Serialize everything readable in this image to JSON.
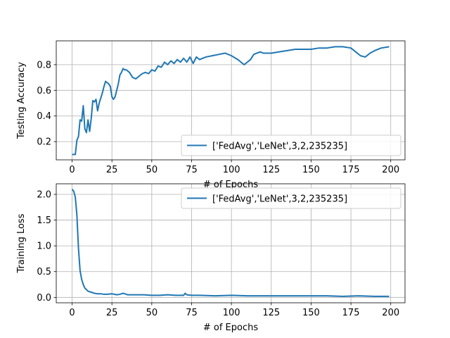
{
  "colors": {
    "line": "#1f77b4",
    "grid": "#b0b0b0",
    "axes": "#000000",
    "legend_edge": "#cccccc"
  },
  "chart_data": [
    {
      "type": "line",
      "ylabel": "Testing Accuracy",
      "xlabel": "# of Epochs",
      "xlim": [
        -9.95,
        208.95
      ],
      "ylim": [
        0.058,
        0.986
      ],
      "xticks": [
        0,
        25,
        50,
        75,
        100,
        125,
        150,
        175,
        200
      ],
      "xtick_labels": [
        "0",
        "25",
        "50",
        "75",
        "100",
        "125",
        "150",
        "175",
        "200"
      ],
      "yticks": [
        0.2,
        0.4,
        0.6,
        0.8
      ],
      "ytick_labels": [
        "0.2",
        "0.4",
        "0.6",
        "0.8"
      ],
      "grid": true,
      "legend": "lower-right",
      "series": [
        {
          "name": "['FedAvg','LeNet',3,2,235235]",
          "x": [
            0,
            1,
            2,
            3,
            4,
            5,
            6,
            7,
            8,
            9,
            10,
            11,
            12,
            13,
            14,
            15,
            16,
            17,
            18,
            19,
            20,
            21,
            22,
            23,
            24,
            25,
            26,
            27,
            28,
            29,
            30,
            31,
            32,
            33,
            34,
            35,
            36,
            37,
            38,
            40,
            42,
            44,
            46,
            48,
            50,
            52,
            54,
            56,
            58,
            60,
            62,
            64,
            66,
            68,
            70,
            72,
            74,
            76,
            78,
            80,
            84,
            88,
            92,
            96,
            100,
            104,
            106,
            108,
            110,
            112,
            114,
            116,
            118,
            120,
            125,
            130,
            135,
            140,
            145,
            150,
            155,
            160,
            165,
            170,
            175,
            178,
            181,
            184,
            187,
            190,
            194,
            199
          ],
          "y": [
            0.1,
            0.1,
            0.1,
            0.21,
            0.24,
            0.37,
            0.36,
            0.48,
            0.3,
            0.27,
            0.37,
            0.28,
            0.38,
            0.52,
            0.51,
            0.53,
            0.44,
            0.5,
            0.54,
            0.58,
            0.63,
            0.67,
            0.66,
            0.65,
            0.63,
            0.55,
            0.53,
            0.55,
            0.6,
            0.65,
            0.72,
            0.74,
            0.77,
            0.76,
            0.76,
            0.75,
            0.74,
            0.72,
            0.7,
            0.69,
            0.71,
            0.73,
            0.74,
            0.73,
            0.76,
            0.75,
            0.79,
            0.78,
            0.82,
            0.8,
            0.83,
            0.81,
            0.84,
            0.82,
            0.85,
            0.82,
            0.86,
            0.81,
            0.86,
            0.84,
            0.86,
            0.87,
            0.88,
            0.89,
            0.87,
            0.84,
            0.82,
            0.8,
            0.82,
            0.84,
            0.88,
            0.89,
            0.9,
            0.89,
            0.89,
            0.9,
            0.91,
            0.92,
            0.92,
            0.92,
            0.93,
            0.93,
            0.94,
            0.94,
            0.93,
            0.9,
            0.87,
            0.86,
            0.89,
            0.91,
            0.93,
            0.94
          ]
        }
      ]
    },
    {
      "type": "line",
      "ylabel": "Training Loss",
      "xlabel": "# of Epochs",
      "xlim": [
        -9.95,
        208.95
      ],
      "ylim": [
        -0.105,
        2.205
      ],
      "xticks": [
        0,
        25,
        50,
        75,
        100,
        125,
        150,
        175,
        200
      ],
      "xtick_labels": [
        "0",
        "25",
        "50",
        "75",
        "100",
        "125",
        "150",
        "175",
        "200"
      ],
      "yticks": [
        0.0,
        0.5,
        1.0,
        1.5,
        2.0
      ],
      "ytick_labels": [
        "0.0",
        "0.5",
        "1.0",
        "1.5",
        "2.0"
      ],
      "grid": true,
      "legend": "upper-right",
      "series": [
        {
          "name": "['FedAvg','LeNet',3,2,235235]",
          "x": [
            0,
            1,
            2,
            3,
            4,
            5,
            6,
            7,
            8,
            9,
            10,
            12,
            14,
            16,
            18,
            20,
            22,
            25,
            28,
            30,
            32,
            35,
            40,
            45,
            50,
            55,
            60,
            65,
            70,
            71,
            72,
            75,
            80,
            90,
            100,
            110,
            120,
            130,
            140,
            150,
            160,
            170,
            180,
            190,
            199
          ],
          "y": [
            2.1,
            2.06,
            1.95,
            1.6,
            0.95,
            0.52,
            0.35,
            0.25,
            0.18,
            0.15,
            0.12,
            0.1,
            0.08,
            0.07,
            0.07,
            0.06,
            0.06,
            0.07,
            0.05,
            0.06,
            0.08,
            0.05,
            0.05,
            0.05,
            0.04,
            0.04,
            0.05,
            0.04,
            0.04,
            0.08,
            0.05,
            0.04,
            0.04,
            0.03,
            0.04,
            0.03,
            0.03,
            0.03,
            0.03,
            0.03,
            0.03,
            0.02,
            0.03,
            0.02,
            0.02
          ]
        }
      ]
    }
  ]
}
